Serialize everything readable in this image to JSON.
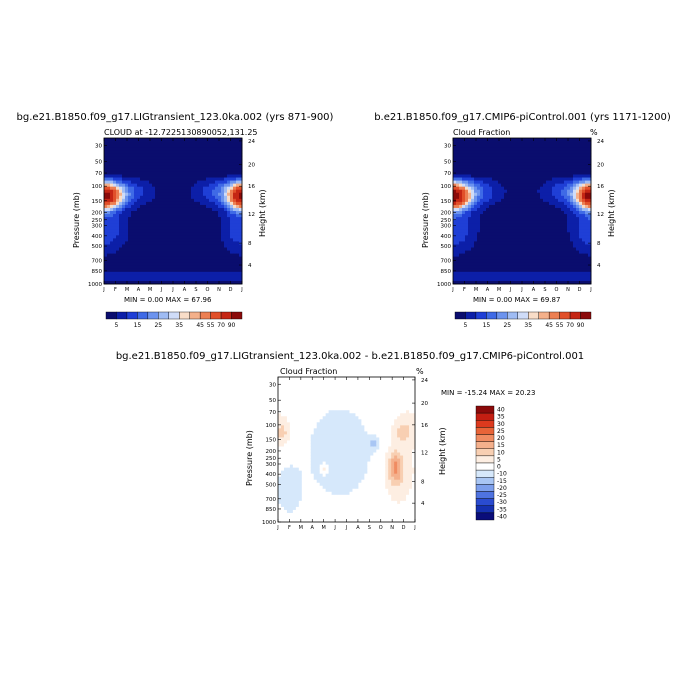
{
  "chart_data": [
    {
      "type": "heatmap",
      "title": "bg.e21.B1850.f09_g17.LIGtransient_123.0ka.002 (yrs 871-900)",
      "subtitle_left": "CLOUD at -12.7225130890052,131.25",
      "subtitle_right": "",
      "ylabel": "Pressure (mb)",
      "ylabel_right": "Height (km)",
      "x_ticks": [
        "J",
        "F",
        "M",
        "A",
        "M",
        "J",
        "J",
        "A",
        "S",
        "O",
        "N",
        "D",
        "J"
      ],
      "y_ticks": [
        "30",
        "50",
        "70",
        "100",
        "150",
        "200",
        "250",
        "300",
        "400",
        "500",
        "700",
        "850",
        "1000"
      ],
      "y2_ticks": [
        "24",
        "20",
        "16",
        "12",
        "8",
        "4"
      ],
      "stats": "MIN =   0.00 MAX =  67.96",
      "colorbar_labels": [
        "5",
        "15",
        "25",
        "35",
        "45",
        "55",
        "70",
        "90"
      ],
      "min": 0.0,
      "max": 67.96
    },
    {
      "type": "heatmap",
      "title": "b.e21.B1850.f09_g17.CMIP6-piControl.001 (yrs 1171-1200)",
      "subtitle_left": "Cloud Fraction",
      "subtitle_right": "%",
      "ylabel": "Pressure (mb)",
      "ylabel_right": "Height (km)",
      "x_ticks": [
        "J",
        "F",
        "M",
        "A",
        "M",
        "J",
        "J",
        "A",
        "S",
        "O",
        "N",
        "D",
        "J"
      ],
      "y_ticks": [
        "30",
        "50",
        "70",
        "100",
        "150",
        "200",
        "250",
        "300",
        "400",
        "500",
        "700",
        "850",
        "1000"
      ],
      "y2_ticks": [
        "24",
        "20",
        "16",
        "12",
        "8",
        "4"
      ],
      "stats": "MIN =   0.00 MAX =  69.87",
      "colorbar_labels": [
        "5",
        "15",
        "25",
        "35",
        "45",
        "55",
        "70",
        "90"
      ],
      "min": 0.0,
      "max": 69.87
    },
    {
      "type": "heatmap",
      "title": "bg.e21.B1850.f09_g17.LIGtransient_123.0ka.002 - b.e21.B1850.f09_g17.CMIP6-piControl.001",
      "subtitle_left": "Cloud Fraction",
      "subtitle_right": "%",
      "ylabel": "Pressure (mb)",
      "ylabel_right": "Height (km)",
      "x_ticks": [
        "J",
        "F",
        "M",
        "A",
        "M",
        "J",
        "J",
        "A",
        "S",
        "O",
        "N",
        "D",
        "J"
      ],
      "y_ticks": [
        "30",
        "50",
        "70",
        "100",
        "150",
        "200",
        "250",
        "300",
        "400",
        "500",
        "700",
        "850",
        "1000"
      ],
      "y2_ticks": [
        "24",
        "20",
        "16",
        "12",
        "8",
        "4"
      ],
      "stats": "MIN = -15.24 MAX =  20.23",
      "colorbar_labels": [
        "40",
        "35",
        "30",
        "25",
        "20",
        "15",
        "10",
        "5",
        "0",
        "-10",
        "-15",
        "-20",
        "-25",
        "-30",
        "-35",
        "-40"
      ],
      "min": -15.24,
      "max": 20.23
    }
  ],
  "colors": {
    "seq": [
      "#0a0d6e",
      "#0c1fa8",
      "#1f3fd6",
      "#3f6ae6",
      "#6c93ee",
      "#9fbcf4",
      "#cfdcf8",
      "#f8ddc8",
      "#f4b08a",
      "#ec7f52",
      "#e1502a",
      "#c52614",
      "#8b0a0a"
    ],
    "div": [
      "#8b0a0a",
      "#c41e12",
      "#dc3a1e",
      "#e86438",
      "#f08c62",
      "#f4b08c",
      "#f8cfb2",
      "#fdeee2",
      "#ffffff",
      "#d6e8fb",
      "#a9c6f4",
      "#7d9fec",
      "#4f73e0",
      "#2a4bd0",
      "#1530b0",
      "#0a0d7a"
    ]
  }
}
